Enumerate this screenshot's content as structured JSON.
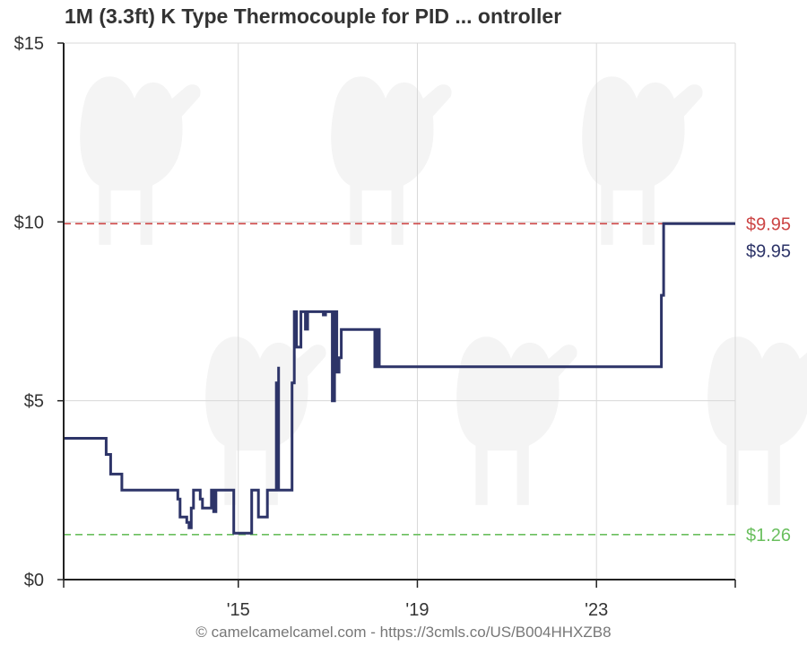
{
  "title": "1M (3.3ft) K Type Thermocouple for PID ... ontroller",
  "footer": "© camelcamelcamel.com - https://3cmls.co/US/B004HHXZB8",
  "colors": {
    "series": "#2d3468",
    "highest": "#cc4444",
    "lowest": "#6abf5e",
    "grid": "#d8d8d8",
    "axis": "#222222",
    "watermark": "#f4f4f4"
  },
  "chart_data": {
    "type": "line",
    "x_range": [
      2010.5,
      2025.5
    ],
    "ylim": [
      0,
      15
    ],
    "grid": true,
    "y_ticks": [
      {
        "value": 0,
        "label": "$0"
      },
      {
        "value": 5,
        "label": "$5"
      },
      {
        "value": 10,
        "label": "$10"
      },
      {
        "value": 15,
        "label": "$15"
      }
    ],
    "x_ticks": [
      {
        "value": 2014.4,
        "label": "'15"
      },
      {
        "value": 2018.4,
        "label": "'19"
      },
      {
        "value": 2022.4,
        "label": "'23"
      }
    ],
    "reference_lines": [
      {
        "kind": "highest",
        "value": 9.95,
        "label": "$9.95"
      },
      {
        "kind": "lowest",
        "value": 1.26,
        "label": "$1.26"
      }
    ],
    "current_label": "$9.95",
    "series": [
      {
        "values": [
          [
            2010.5,
            3.95
          ],
          [
            2011.45,
            3.95
          ],
          [
            2011.45,
            3.5
          ],
          [
            2011.55,
            3.5
          ],
          [
            2011.55,
            2.95
          ],
          [
            2011.8,
            2.95
          ],
          [
            2011.8,
            2.5
          ],
          [
            2013.05,
            2.5
          ],
          [
            2013.05,
            2.25
          ],
          [
            2013.1,
            2.25
          ],
          [
            2013.1,
            1.75
          ],
          [
            2013.25,
            1.75
          ],
          [
            2013.25,
            1.6
          ],
          [
            2013.3,
            1.6
          ],
          [
            2013.3,
            1.45
          ],
          [
            2013.35,
            1.45
          ],
          [
            2013.35,
            2.0
          ],
          [
            2013.4,
            2.0
          ],
          [
            2013.4,
            2.5
          ],
          [
            2013.55,
            2.5
          ],
          [
            2013.55,
            2.25
          ],
          [
            2013.6,
            2.25
          ],
          [
            2013.6,
            2.0
          ],
          [
            2013.8,
            2.0
          ],
          [
            2013.8,
            2.5
          ],
          [
            2013.85,
            2.5
          ],
          [
            2013.85,
            1.9
          ],
          [
            2013.9,
            1.9
          ],
          [
            2013.9,
            2.5
          ],
          [
            2014.3,
            2.5
          ],
          [
            2014.3,
            1.3
          ],
          [
            2014.7,
            1.3
          ],
          [
            2014.7,
            2.5
          ],
          [
            2014.85,
            2.5
          ],
          [
            2014.85,
            1.75
          ],
          [
            2015.05,
            1.75
          ],
          [
            2015.05,
            2.5
          ],
          [
            2015.25,
            2.5
          ],
          [
            2015.25,
            5.5
          ],
          [
            2015.3,
            5.5
          ],
          [
            2015.3,
            5.95
          ],
          [
            2015.3,
            2.5
          ],
          [
            2015.6,
            2.5
          ],
          [
            2015.6,
            5.5
          ],
          [
            2015.65,
            5.5
          ],
          [
            2015.65,
            7.49
          ],
          [
            2015.7,
            7.49
          ],
          [
            2015.7,
            6.5
          ],
          [
            2015.8,
            6.5
          ],
          [
            2015.8,
            7.49
          ],
          [
            2015.9,
            7.49
          ],
          [
            2015.9,
            7.0
          ],
          [
            2015.95,
            7.0
          ],
          [
            2015.95,
            7.49
          ],
          [
            2016.3,
            7.49
          ],
          [
            2016.3,
            7.4
          ],
          [
            2016.35,
            7.4
          ],
          [
            2016.35,
            7.49
          ],
          [
            2016.5,
            7.49
          ],
          [
            2016.5,
            5.0
          ],
          [
            2016.55,
            5.0
          ],
          [
            2016.55,
            7.49
          ],
          [
            2016.6,
            7.49
          ],
          [
            2016.6,
            5.8
          ],
          [
            2016.65,
            5.8
          ],
          [
            2016.65,
            6.2
          ],
          [
            2016.7,
            6.2
          ],
          [
            2016.7,
            6.99
          ],
          [
            2017.45,
            6.99
          ],
          [
            2017.45,
            5.95
          ],
          [
            2017.5,
            5.95
          ],
          [
            2017.5,
            6.99
          ],
          [
            2017.55,
            6.99
          ],
          [
            2017.55,
            5.95
          ],
          [
            2023.85,
            5.95
          ],
          [
            2023.85,
            7.95
          ],
          [
            2023.9,
            7.95
          ],
          [
            2023.9,
            9.95
          ],
          [
            2025.5,
            9.95
          ]
        ]
      }
    ]
  }
}
